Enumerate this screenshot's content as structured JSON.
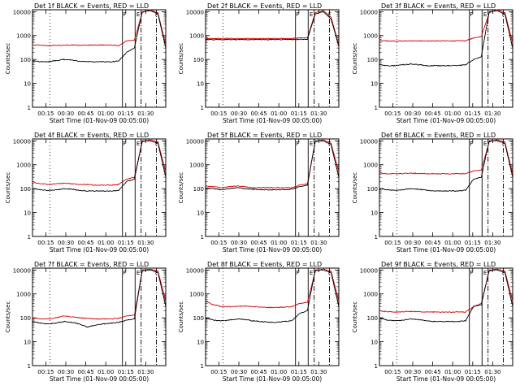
{
  "chart_data": [
    {
      "title": "Det 1f BLACK = Events, RED = LLD",
      "ylabel": "Counts/sec",
      "xlabel": "Start Time (01-Nov-09 00:05:00)",
      "type": "line",
      "yscale": "log",
      "ylim": [
        1,
        12000
      ],
      "xlim": [
        0,
        100
      ],
      "xticks": [
        "00:15",
        "00:30",
        "00:45",
        "01:00",
        "01:15",
        "01:30"
      ],
      "yticks": [
        "1",
        "10",
        "100",
        "1000",
        "10000"
      ],
      "markers": [
        "F",
        "E",
        "F"
      ],
      "series": [
        {
          "color": "#d40000",
          "values": [
            400,
            400,
            380,
            390,
            400,
            400,
            390,
            400,
            400,
            400,
            400,
            380,
            600,
            650,
            9000,
            12000,
            9000,
            400
          ]
        },
        {
          "color": "#000000",
          "values": [
            90,
            80,
            80,
            90,
            100,
            95,
            85,
            80,
            80,
            80,
            80,
            85,
            200,
            300,
            10000,
            11000,
            8000,
            300
          ]
        }
      ]
    },
    {
      "title": "Det 2f BLACK = Events, RED = LLD",
      "ylabel": "Counts/sec",
      "xlabel": "Start Time (01-Nov-09 00:05:00)",
      "type": "line",
      "yscale": "log",
      "ylim": [
        1,
        12000
      ],
      "xlim": [
        0,
        100
      ],
      "xticks": [
        "00:15",
        "00:30",
        "00:45",
        "01:00",
        "01:15",
        "01:30"
      ],
      "yticks": [
        "1",
        "10",
        "100",
        "1000",
        "10000"
      ],
      "markers": [
        "F",
        "E",
        "F"
      ],
      "series": [
        {
          "color": "#d40000",
          "values": [
            750,
            750,
            750,
            750,
            750,
            750,
            750,
            750,
            750,
            750,
            750,
            750,
            800,
            800,
            9000,
            11000,
            6000,
            400
          ]
        },
        {
          "color": "#000000",
          "values": [
            680,
            680,
            680,
            680,
            680,
            680,
            680,
            680,
            680,
            680,
            680,
            680,
            700,
            700,
            8000,
            10000,
            5000,
            350
          ]
        }
      ]
    },
    {
      "title": "Det 3f BLACK = Events, RED = LLD",
      "ylabel": "Counts/sec",
      "xlabel": "Start Time (01-Nov-09 00:05:00)",
      "type": "line",
      "yscale": "log",
      "ylim": [
        1,
        12000
      ],
      "xlim": [
        0,
        100
      ],
      "xticks": [
        "00:15",
        "00:30",
        "00:45",
        "01:00",
        "01:15",
        "01:30"
      ],
      "yticks": [
        "1",
        "10",
        "100",
        "1000",
        "10000"
      ],
      "markers": [
        "F",
        "E",
        "F"
      ],
      "series": [
        {
          "color": "#d40000",
          "values": [
            600,
            600,
            580,
            600,
            600,
            600,
            590,
            600,
            600,
            600,
            600,
            600,
            800,
            900,
            9000,
            12000,
            9000,
            500
          ]
        },
        {
          "color": "#000000",
          "values": [
            60,
            55,
            55,
            60,
            65,
            60,
            55,
            55,
            55,
            55,
            55,
            60,
            100,
            130,
            10000,
            11000,
            8000,
            300
          ]
        }
      ]
    },
    {
      "title": "Det 4f BLACK = Events, RED = LLD",
      "ylabel": "Counts/sec",
      "xlabel": "Start Time (01-Nov-09 00:05:00)",
      "type": "line",
      "yscale": "log",
      "ylim": [
        1,
        12000
      ],
      "xlim": [
        0,
        100
      ],
      "xticks": [
        "00:15",
        "00:30",
        "00:45",
        "01:00",
        "01:15",
        "01:30"
      ],
      "yticks": [
        "1",
        "10",
        "100",
        "1000",
        "10000"
      ],
      "markers": [
        "F",
        "E",
        "F"
      ],
      "series": [
        {
          "color": "#d40000",
          "values": [
            180,
            160,
            150,
            160,
            170,
            160,
            150,
            150,
            140,
            140,
            140,
            150,
            250,
            300,
            9000,
            11000,
            9000,
            500
          ]
        },
        {
          "color": "#000000",
          "values": [
            100,
            90,
            85,
            90,
            100,
            95,
            85,
            80,
            80,
            80,
            80,
            85,
            200,
            250,
            10000,
            10000,
            8000,
            300
          ]
        }
      ]
    },
    {
      "title": "Det 5f BLACK = Events, RED = LLD",
      "ylabel": "Counts/sec",
      "xlabel": "Start Time (01-Nov-09 00:05:00)",
      "type": "line",
      "yscale": "log",
      "ylim": [
        1,
        12000
      ],
      "xlim": [
        0,
        100
      ],
      "xticks": [
        "00:15",
        "00:30",
        "00:45",
        "01:00",
        "01:15",
        "01:30"
      ],
      "yticks": [
        "1",
        "10",
        "100",
        "1000",
        "10000"
      ],
      "markers": [
        "F",
        "E",
        "F"
      ],
      "series": [
        {
          "color": "#d40000",
          "values": [
            130,
            120,
            110,
            120,
            130,
            120,
            110,
            110,
            110,
            110,
            110,
            110,
            140,
            160,
            9000,
            11000,
            8000,
            500
          ]
        },
        {
          "color": "#000000",
          "values": [
            110,
            100,
            90,
            100,
            110,
            100,
            95,
            90,
            90,
            90,
            90,
            95,
            120,
            140,
            10000,
            10000,
            7000,
            300
          ]
        }
      ]
    },
    {
      "title": "Det 6f BLACK = Events, RED = LLD",
      "ylabel": "Counts/sec",
      "xlabel": "Start Time (01-Nov-09 00:05:00)",
      "type": "line",
      "yscale": "log",
      "ylim": [
        1,
        12000
      ],
      "xlim": [
        0,
        100
      ],
      "xticks": [
        "00:15",
        "00:30",
        "00:45",
        "01:00",
        "01:15",
        "01:30"
      ],
      "yticks": [
        "1",
        "10",
        "100",
        "1000",
        "10000"
      ],
      "markers": [
        "F",
        "E",
        "F"
      ],
      "series": [
        {
          "color": "#d40000",
          "values": [
            450,
            420,
            420,
            430,
            440,
            430,
            420,
            420,
            420,
            420,
            420,
            420,
            550,
            600,
            9000,
            11000,
            9000,
            400
          ]
        },
        {
          "color": "#000000",
          "values": [
            100,
            90,
            85,
            90,
            100,
            95,
            85,
            80,
            80,
            80,
            80,
            85,
            250,
            300,
            10000,
            10000,
            8000,
            300
          ]
        }
      ]
    },
    {
      "title": "Det 7f BLACK = Events, RED = LLD",
      "ylabel": "Counts/sec",
      "xlabel": "Start Time (01-Nov-09 00:05:00)",
      "type": "line",
      "yscale": "log",
      "ylim": [
        1,
        12000
      ],
      "xlim": [
        0,
        100
      ],
      "xticks": [
        "00:15",
        "00:30",
        "00:45",
        "01:00",
        "01:15",
        "01:30"
      ],
      "yticks": [
        "1",
        "10",
        "100",
        "1000",
        "10000"
      ],
      "markers": [
        "F",
        "E",
        "F"
      ],
      "series": [
        {
          "color": "#d40000",
          "values": [
            100,
            90,
            90,
            100,
            120,
            110,
            100,
            95,
            90,
            90,
            90,
            95,
            120,
            130,
            9000,
            11000,
            9000,
            500
          ]
        },
        {
          "color": "#000000",
          "values": [
            70,
            60,
            55,
            60,
            70,
            65,
            55,
            40,
            50,
            55,
            60,
            65,
            80,
            90,
            10000,
            10000,
            8000,
            300
          ]
        }
      ]
    },
    {
      "title": "Det 8f BLACK = Events, RED = LLD",
      "ylabel": "Counts/sec",
      "xlabel": "Start Time (01-Nov-09 00:05:00)",
      "type": "line",
      "yscale": "log",
      "ylim": [
        1,
        12000
      ],
      "xlim": [
        0,
        100
      ],
      "xticks": [
        "00:15",
        "00:30",
        "00:45",
        "01:00",
        "01:15",
        "01:30"
      ],
      "yticks": [
        "1",
        "10",
        "100",
        "1000",
        "10000"
      ],
      "markers": [
        "F",
        "E",
        "F"
      ],
      "series": [
        {
          "color": "#d40000",
          "values": [
            500,
            350,
            300,
            290,
            300,
            310,
            300,
            280,
            270,
            270,
            280,
            290,
            400,
            450,
            9000,
            11000,
            9000,
            500
          ]
        },
        {
          "color": "#000000",
          "values": [
            100,
            80,
            75,
            80,
            90,
            85,
            75,
            70,
            65,
            65,
            70,
            75,
            150,
            200,
            10000,
            10000,
            8000,
            300
          ]
        }
      ]
    },
    {
      "title": "Det 9f BLACK = Events, RED = LLD",
      "ylabel": "Counts/sec",
      "xlabel": "Start Time (01-Nov-09 00:05:00)",
      "type": "line",
      "yscale": "log",
      "ylim": [
        1,
        12000
      ],
      "xlim": [
        0,
        100
      ],
      "xticks": [
        "00:15",
        "00:30",
        "00:45",
        "01:00",
        "01:15",
        "01:30"
      ],
      "yticks": [
        "1",
        "10",
        "100",
        "1000",
        "10000"
      ],
      "markers": [
        "F",
        "E",
        "F"
      ],
      "series": [
        {
          "color": "#d40000",
          "values": [
            200,
            180,
            175,
            180,
            185,
            180,
            175,
            175,
            175,
            175,
            175,
            175,
            300,
            400,
            9000,
            11000,
            9000,
            500
          ]
        },
        {
          "color": "#000000",
          "values": [
            100,
            80,
            75,
            80,
            90,
            85,
            75,
            70,
            70,
            70,
            70,
            75,
            300,
            350,
            10000,
            10000,
            8000,
            300
          ]
        }
      ]
    }
  ]
}
